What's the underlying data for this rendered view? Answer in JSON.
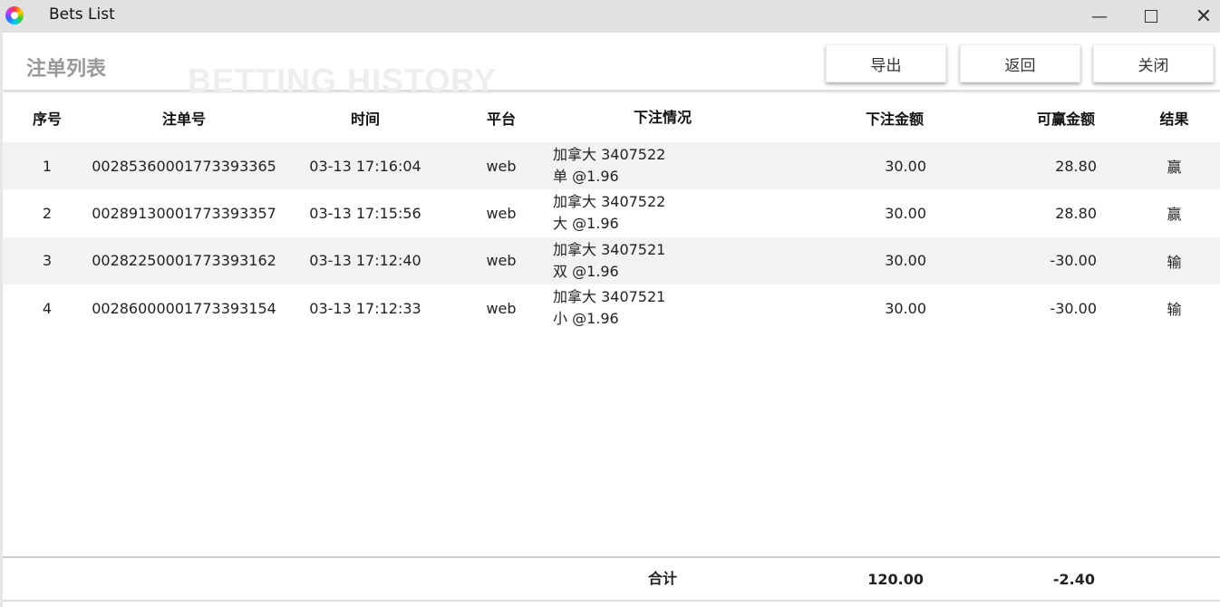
{
  "window": {
    "title": "Bets List",
    "controls": [
      "minimize",
      "maximize",
      "close"
    ]
  },
  "header": {
    "title": "注单列表",
    "watermark": "BETTING HISTORY",
    "buttons": {
      "export": "导出",
      "back": "返回",
      "close": "关闭"
    }
  },
  "table": {
    "columns": [
      "序号",
      "注单号",
      "时间",
      "平台",
      "下注情况",
      "下注金额",
      "可赢金额",
      "结果"
    ],
    "rows": [
      {
        "no": "1",
        "id": "00285360001773393365",
        "time": "03-13 17:16:04",
        "platform": "web",
        "bet_line1": "加拿大 3407522",
        "bet_line2": "单 @1.96",
        "amount": "30.00",
        "win": "28.80",
        "result": "赢"
      },
      {
        "no": "2",
        "id": "00289130001773393357",
        "time": "03-13 17:15:56",
        "platform": "web",
        "bet_line1": "加拿大 3407522",
        "bet_line2": "大 @1.96",
        "amount": "30.00",
        "win": "28.80",
        "result": "赢"
      },
      {
        "no": "3",
        "id": "00282250001773393162",
        "time": "03-13 17:12:40",
        "platform": "web",
        "bet_line1": "加拿大 3407521",
        "bet_line2": "双 @1.96",
        "amount": "30.00",
        "win": "-30.00",
        "result": "输"
      },
      {
        "no": "4",
        "id": "00286000001773393154",
        "time": "03-13 17:12:33",
        "platform": "web",
        "bet_line1": "加拿大 3407521",
        "bet_line2": "小 @1.96",
        "amount": "30.00",
        "win": "-30.00",
        "result": "输"
      }
    ],
    "footer": {
      "label": "合计",
      "total_amount": "120.00",
      "total_win": "-2.40"
    }
  }
}
